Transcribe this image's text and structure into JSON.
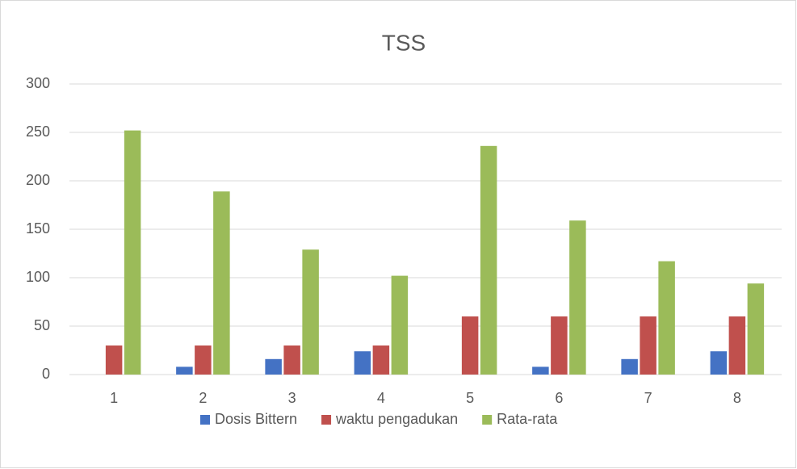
{
  "chart_data": {
    "type": "bar",
    "title": "TSS",
    "categories": [
      "1",
      "2",
      "3",
      "4",
      "5",
      "6",
      "7",
      "8"
    ],
    "series": [
      {
        "name": "Dosis Bittern",
        "color": "#4472c4",
        "values": [
          0,
          8,
          16,
          24,
          0,
          8,
          16,
          24
        ]
      },
      {
        "name": "waktu pengadukan",
        "color": "#c0504d",
        "values": [
          30,
          30,
          30,
          30,
          60,
          60,
          60,
          60
        ]
      },
      {
        "name": "Rata-rata",
        "color": "#9bbb59",
        "values": [
          252,
          189,
          129,
          102,
          236,
          159,
          117,
          94
        ]
      }
    ],
    "ylim": [
      0,
      300
    ],
    "yticks": [
      0,
      50,
      100,
      150,
      200,
      250,
      300
    ],
    "grid": true,
    "legend": "bottom"
  }
}
